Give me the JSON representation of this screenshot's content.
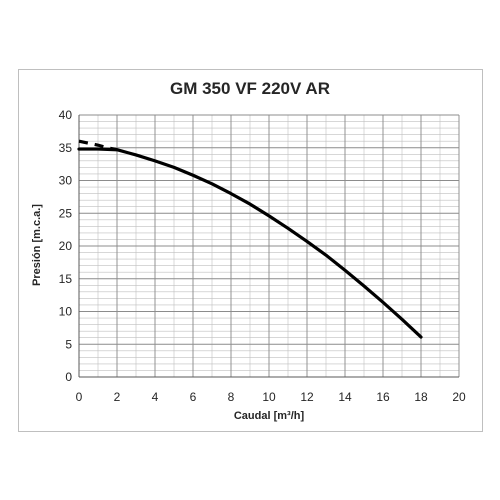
{
  "chart_data": {
    "type": "line",
    "title": "GM 350 VF 220V AR",
    "xlabel": "Caudal [m³/h]",
    "ylabel": "Presión [m.c.a.]",
    "xlim": [
      0,
      20
    ],
    "ylim": [
      0,
      40
    ],
    "x_ticks": [
      0,
      2,
      4,
      6,
      8,
      10,
      12,
      14,
      16,
      18,
      20
    ],
    "y_ticks": [
      0,
      5,
      10,
      15,
      20,
      25,
      30,
      35,
      40
    ],
    "grid": true,
    "legend": "none",
    "colors": {
      "line": "#000000",
      "grid": "#bfbfbf",
      "text": "#262626"
    },
    "series": [
      {
        "style": "solid",
        "x": [
          0,
          1,
          2,
          3,
          4,
          5,
          6,
          7,
          8,
          9,
          10,
          11,
          12,
          13,
          14,
          15,
          16,
          17,
          18
        ],
        "y": [
          34.8,
          34.8,
          34.7,
          33.9,
          33.0,
          32.0,
          30.8,
          29.5,
          28.0,
          26.4,
          24.6,
          22.7,
          20.7,
          18.6,
          16.3,
          13.9,
          11.4,
          8.8,
          6.1
        ]
      },
      {
        "style": "dashed",
        "x": [
          0,
          0.5,
          1,
          1.5,
          2
        ],
        "y": [
          36.0,
          35.7,
          35.4,
          35.0,
          34.7
        ]
      }
    ]
  }
}
